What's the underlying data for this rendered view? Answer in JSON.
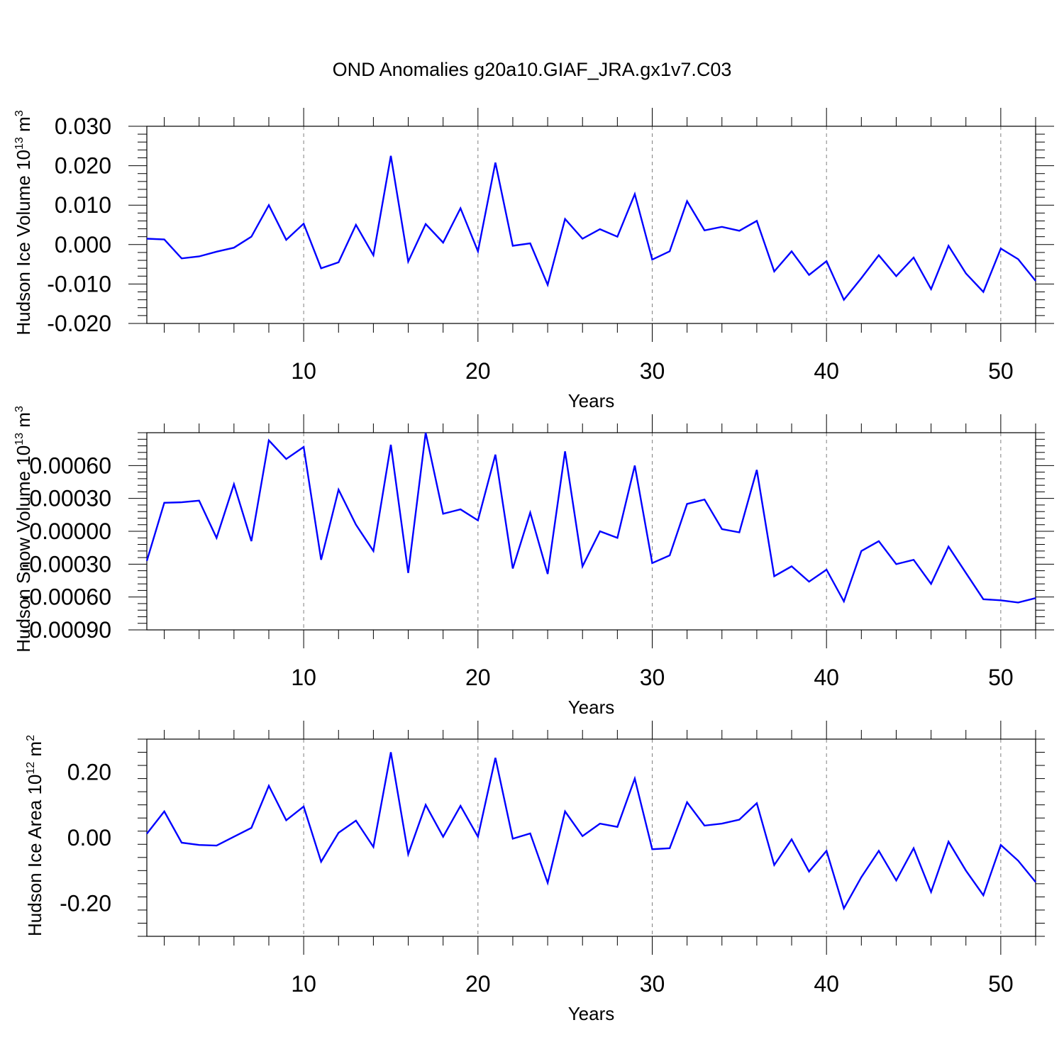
{
  "title": "OND Anomalies g20a10.GIAF_JRA.gx1v7.C03",
  "colors": {
    "line": "#0000ff",
    "axis": "#000000",
    "grid": "#808080"
  },
  "chart_data": [
    {
      "type": "line",
      "xlabel": "Years",
      "ylabel": "Hudson Ice Volume 10",
      "ylabel_exp": "13",
      "ylabel_unit": " m",
      "ylabel_unit_exp": "3",
      "xlim": [
        1,
        52
      ],
      "ylim": [
        -0.02,
        0.03
      ],
      "xticks": [
        10,
        20,
        30,
        40,
        50
      ],
      "yticks": [
        -0.02,
        -0.01,
        0.0,
        0.01,
        0.02,
        0.03
      ],
      "ytick_labels": [
        "-0.020",
        "-0.010",
        "0.000",
        "0.010",
        "0.020",
        "0.030"
      ],
      "x": [
        1,
        2,
        3,
        4,
        5,
        6,
        7,
        8,
        9,
        10,
        11,
        12,
        13,
        14,
        15,
        16,
        17,
        18,
        19,
        20,
        21,
        22,
        23,
        24,
        25,
        26,
        27,
        28,
        29,
        30,
        31,
        32,
        33,
        34,
        35,
        36,
        37,
        38,
        39,
        40,
        41,
        42,
        43,
        44,
        45,
        46,
        47,
        48,
        49,
        50,
        51,
        52
      ],
      "values": [
        0.0015,
        0.0013,
        -0.0035,
        -0.003,
        -0.0018,
        -0.0008,
        0.002,
        0.01,
        0.0012,
        0.0053,
        -0.006,
        -0.0045,
        0.005,
        -0.0027,
        0.0225,
        -0.0043,
        0.0052,
        0.0005,
        0.0092,
        -0.0017,
        0.0208,
        -0.0003,
        0.0003,
        -0.0102,
        0.0065,
        0.0015,
        0.0039,
        0.002,
        0.0128,
        -0.0038,
        -0.0017,
        0.011,
        0.0036,
        0.0045,
        0.0035,
        0.006,
        -0.0068,
        -0.0017,
        -0.0077,
        -0.0042,
        -0.014,
        -0.0085,
        -0.0027,
        -0.008,
        -0.0033,
        -0.0113,
        -0.0003,
        -0.0073,
        -0.012,
        -0.001,
        -0.0037,
        -0.0092
      ]
    },
    {
      "type": "line",
      "xlabel": "Years",
      "ylabel": "Hudson Snow Volume 10",
      "ylabel_exp": "13",
      "ylabel_unit": " m",
      "ylabel_unit_exp": "3",
      "xlim": [
        1,
        52
      ],
      "ylim": [
        -0.0009,
        0.0009
      ],
      "xticks": [
        10,
        20,
        30,
        40,
        50
      ],
      "yticks": [
        -0.0009,
        -0.0006,
        -0.0003,
        0.0,
        0.0003,
        0.0006
      ],
      "ytick_labels": [
        "-0.00090",
        "-0.00060",
        "-0.00030",
        "0.00000",
        "0.00030",
        "0.00060"
      ],
      "x": [
        1,
        2,
        3,
        4,
        5,
        6,
        7,
        8,
        9,
        10,
        11,
        12,
        13,
        14,
        15,
        16,
        17,
        18,
        19,
        20,
        21,
        22,
        23,
        24,
        25,
        26,
        27,
        28,
        29,
        30,
        31,
        32,
        33,
        34,
        35,
        36,
        37,
        38,
        39,
        40,
        41,
        42,
        43,
        44,
        45,
        46,
        47,
        48,
        49,
        50,
        51,
        52
      ],
      "values": [
        -0.00027,
        0.00026,
        0.000265,
        0.00028,
        -6e-05,
        0.00043,
        -9e-05,
        0.00083,
        0.00066,
        0.00077,
        -0.00026,
        0.00038,
        6e-05,
        -0.00018,
        0.00079,
        -0.00038,
        0.0009,
        0.00016,
        0.0002,
        0.0001,
        0.0007,
        -0.00034,
        0.00017,
        -0.00039,
        0.00073,
        -0.00032,
        0.0,
        -6e-05,
        0.0006,
        -0.00029,
        -0.00022,
        0.00025,
        0.00029,
        2e-05,
        -1e-05,
        0.00056,
        -0.00041,
        -0.00032,
        -0.00046,
        -0.00035,
        -0.00064,
        -0.00018,
        -9e-05,
        -0.0003,
        -0.00026,
        -0.00048,
        -0.00014,
        -0.00038,
        -0.00062,
        -0.00063,
        -0.00065,
        -0.00061
      ]
    },
    {
      "type": "line",
      "xlabel": "Years",
      "ylabel": "Hudson Ice Area 10",
      "ylabel_exp": "12",
      "ylabel_unit": " m",
      "ylabel_unit_exp": "2",
      "xlim": [
        1,
        52
      ],
      "ylim": [
        -0.3,
        0.3
      ],
      "xticks": [
        10,
        20,
        30,
        40,
        50
      ],
      "yticks": [
        -0.2,
        0.0,
        0.2
      ],
      "ytick_labels": [
        "-0.20",
        "0.00",
        "0.20"
      ],
      "x": [
        1,
        2,
        3,
        4,
        5,
        6,
        7,
        8,
        9,
        10,
        11,
        12,
        13,
        14,
        15,
        16,
        17,
        18,
        19,
        20,
        21,
        22,
        23,
        24,
        25,
        26,
        27,
        28,
        29,
        30,
        31,
        32,
        33,
        34,
        35,
        36,
        37,
        38,
        39,
        40,
        41,
        42,
        43,
        44,
        45,
        46,
        47,
        48,
        49,
        50,
        51,
        52
      ],
      "values": [
        0.012,
        0.08,
        -0.015,
        -0.022,
        -0.024,
        0.003,
        0.03,
        0.158,
        0.053,
        0.095,
        -0.073,
        0.015,
        0.052,
        -0.028,
        0.26,
        -0.05,
        0.1,
        0.003,
        0.097,
        0.003,
        0.243,
        -0.003,
        0.013,
        -0.137,
        0.08,
        0.005,
        0.043,
        0.033,
        0.18,
        -0.035,
        -0.032,
        0.108,
        0.037,
        0.043,
        0.055,
        0.105,
        -0.083,
        -0.005,
        -0.103,
        -0.04,
        -0.215,
        -0.12,
        -0.04,
        -0.13,
        -0.032,
        -0.165,
        -0.012,
        -0.1,
        -0.175,
        -0.022,
        -0.07,
        -0.135
      ]
    }
  ]
}
